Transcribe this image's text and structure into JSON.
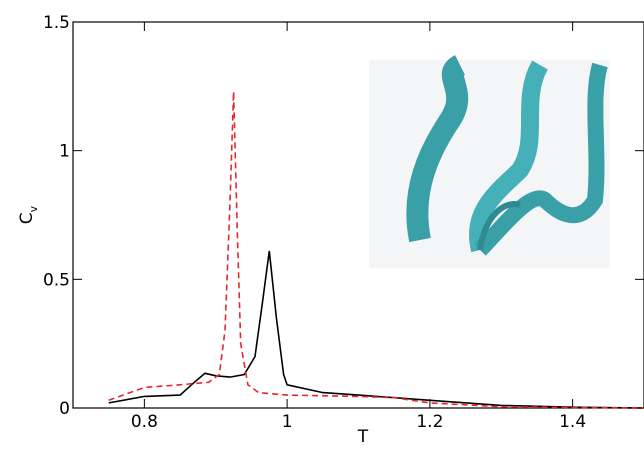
{
  "chart_data": {
    "type": "line",
    "xlabel": "T",
    "ylabel": "C",
    "ylabel_subscript": "v",
    "xlim": [
      0.7,
      1.5
    ],
    "xticks": [
      0.8,
      1,
      1.2,
      1.4
    ],
    "ylim": [
      0,
      1.5
    ],
    "yticks": [
      0,
      0.5,
      1,
      1.5
    ],
    "series": [
      {
        "color": "#000000",
        "dash": "solid",
        "x": [
          0.75,
          0.8,
          0.85,
          0.87,
          0.885,
          0.9,
          0.92,
          0.94,
          0.955,
          0.965,
          0.975,
          0.985,
          0.995,
          1.0,
          1.05,
          1.1,
          1.2,
          1.3,
          1.4,
          1.5
        ],
        "values": [
          0.02,
          0.045,
          0.05,
          0.1,
          0.135,
          0.125,
          0.12,
          0.13,
          0.2,
          0.4,
          0.61,
          0.35,
          0.13,
          0.09,
          0.06,
          0.05,
          0.03,
          0.01,
          0.003,
          0
        ]
      },
      {
        "color": "#e8262a",
        "dash": "dashed",
        "x": [
          0.75,
          0.8,
          0.85,
          0.89,
          0.905,
          0.913,
          0.92,
          0.925,
          0.93,
          0.935,
          0.945,
          0.96,
          1.0,
          1.1,
          1.15,
          1.2,
          1.3,
          1.4,
          1.5
        ],
        "values": [
          0.03,
          0.08,
          0.09,
          0.1,
          0.13,
          0.3,
          0.8,
          1.23,
          0.7,
          0.25,
          0.09,
          0.06,
          0.05,
          0.045,
          0.04,
          0.02,
          0.005,
          0.002,
          0
        ]
      }
    ]
  }
}
